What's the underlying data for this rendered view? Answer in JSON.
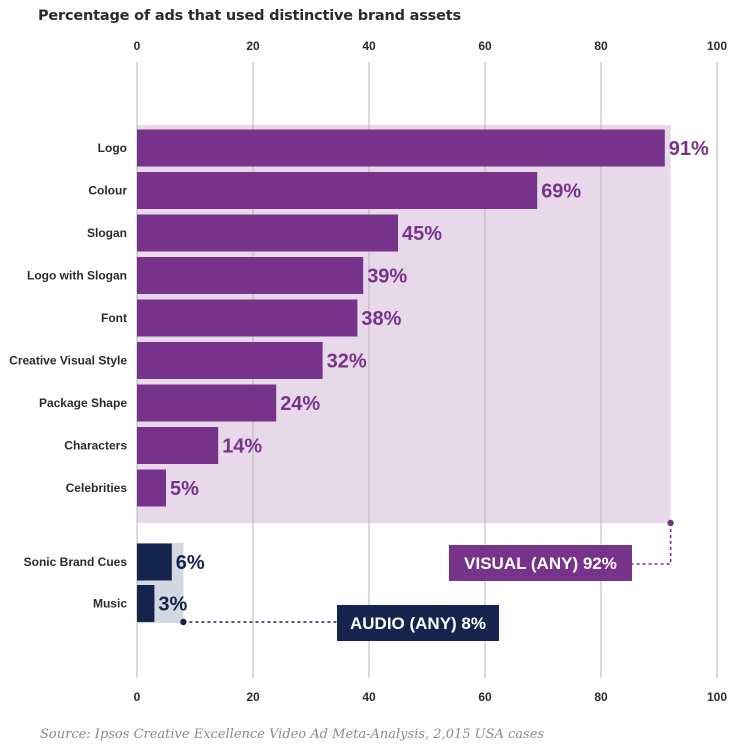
{
  "title": "Percentage of ads that used distinctive brand assets",
  "source": "Source: Ipsos Creative Excellence Video Ad Meta-Analysis, 2,015 USA cases",
  "colors": {
    "visual_bar": "#773289",
    "visual_band": "#e8d9ea",
    "visual_text": "#773289",
    "audio_bar": "#15244d",
    "audio_band": "#d3d7e1",
    "audio_text": "#15244d",
    "grid": "#b5b5b5"
  },
  "chart_data": {
    "type": "bar",
    "orientation": "horizontal",
    "xlim": [
      0,
      100
    ],
    "x_ticks": [
      "0",
      "20",
      "40",
      "60",
      "80",
      "100"
    ],
    "grid": true,
    "groups": [
      {
        "name": "visual",
        "categories": [
          "Logo",
          "Colour",
          "Slogan",
          "Logo with Slogan",
          "Font",
          "Creative Visual Style",
          "Package Shape",
          "Characters",
          "Celebrities"
        ],
        "values": [
          91,
          69,
          45,
          39,
          38,
          32,
          24,
          14,
          5
        ],
        "value_labels": [
          "91%",
          "69%",
          "45%",
          "39%",
          "38%",
          "32%",
          "24%",
          "14%",
          "5%"
        ],
        "any_value": 92,
        "any_label": "VISUAL (ANY) 92%"
      },
      {
        "name": "audio",
        "categories": [
          "Sonic Brand Cues",
          "Music"
        ],
        "values": [
          6,
          3
        ],
        "value_labels": [
          "6%",
          "3%"
        ],
        "any_value": 8,
        "any_label": "AUDIO (ANY) 8%"
      }
    ]
  }
}
